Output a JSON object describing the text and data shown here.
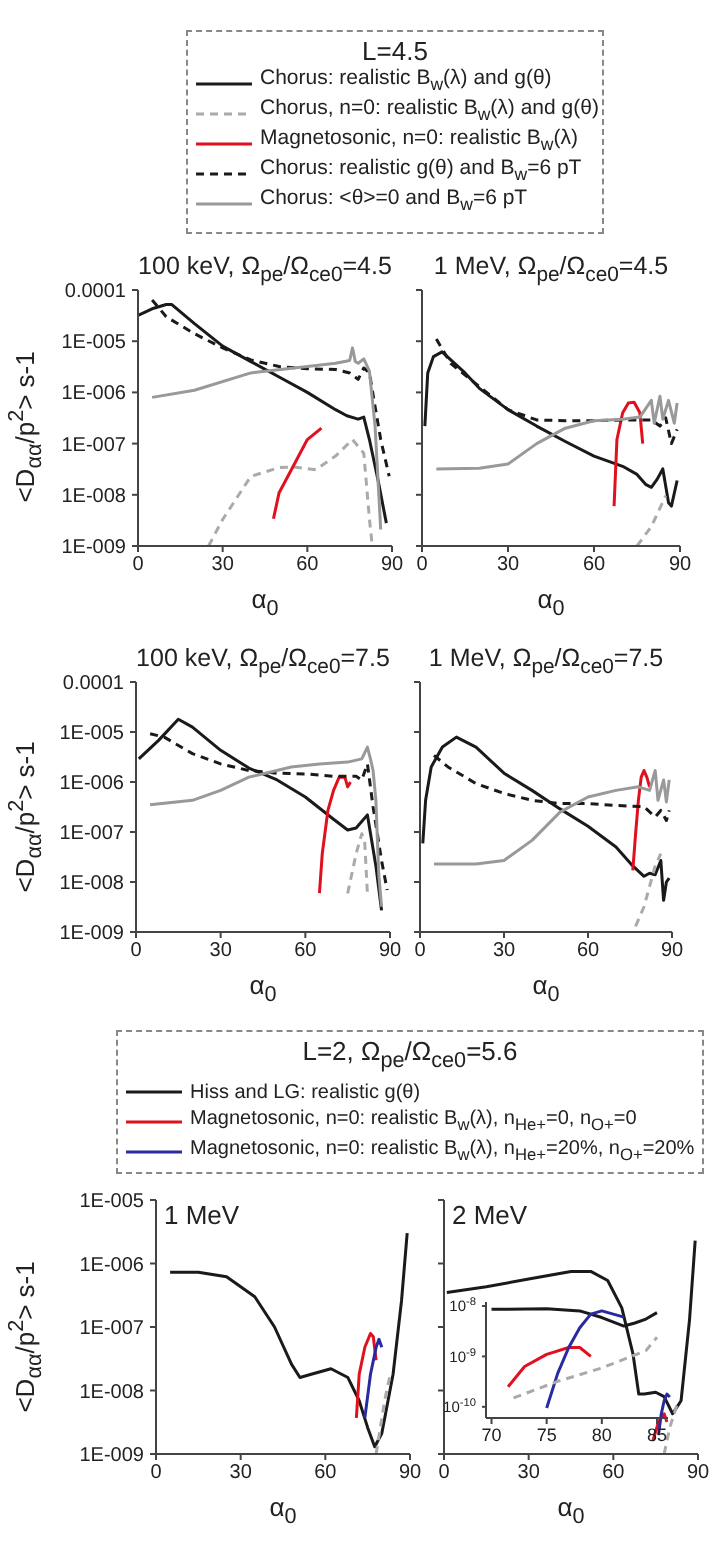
{
  "chart_data": [
    {
      "type": "line",
      "title": "100 keV, Ω$_{pe}$/Ω$_{ce0}$=4.5",
      "xlabel": "α$_{0}$",
      "ylabel": "<D$_{αα}$/p$^{2}$> s-1",
      "legend_title": "L=4.5",
      "legend": "top",
      "log": true,
      "xlim": [
        0,
        90
      ],
      "xticks": [
        0,
        30,
        60,
        90
      ],
      "ylim": [
        1e-09,
        0.0001
      ],
      "yticks": [
        {
          "value": 1e-09,
          "label": "1E-009"
        },
        {
          "value": 1e-08,
          "label": "1E-008"
        },
        {
          "value": 1e-07,
          "label": "1E-007"
        },
        {
          "value": 1e-06,
          "label": "1E-006"
        },
        {
          "value": 1e-05,
          "label": "1E-005"
        },
        {
          "value": 0.0001,
          "label": "0.0001"
        }
      ],
      "series": [
        {
          "name": "Chorus: realistic B$_{w}$(λ) and g(θ)",
          "color": "#1a1a1a",
          "x": [
            0,
            5,
            10,
            12,
            20,
            30,
            40,
            50,
            60,
            70,
            74,
            78,
            80,
            82,
            85,
            88
          ],
          "values": [
            3.2e-05,
            4.3e-05,
            5.2e-05,
            5.2e-05,
            2.2e-05,
            8e-06,
            4e-06,
            2e-06,
            1e-06,
            4.6e-07,
            3.5e-07,
            3e-07,
            3.3e-07,
            1.2e-07,
            2e-08,
            2.8e-09
          ]
        },
        {
          "name": "Chorus, n=0: realistic B$_{w}$(λ) and g(θ)",
          "color": "#aaaaaa",
          "line_style": "dashed",
          "x": [
            25,
            30,
            40,
            50,
            55,
            63,
            70,
            76,
            80,
            82,
            83
          ],
          "values": [
            1e-09,
            3.3e-09,
            2.3e-08,
            3.4e-08,
            3.5e-08,
            3.1e-08,
            5.7e-08,
            1.2e-07,
            6.5e-08,
            3.4e-09,
            1e-09
          ]
        },
        {
          "name": "Magnetosonic, n=0: realistic B$_{w}$(λ)",
          "color": "#e0101e",
          "x": [
            48,
            50,
            55,
            60,
            65
          ],
          "values": [
            3.4e-09,
            1.1e-08,
            3.6e-08,
            1.2e-07,
            2e-07
          ]
        },
        {
          "name": "Chorus: realistic g(θ) and B$_{w}$=6 pT",
          "color": "#1a1a1a",
          "line_style": "dashed",
          "x": [
            5,
            10,
            20,
            30,
            40,
            50,
            60,
            70,
            75,
            78,
            80,
            82,
            84,
            86,
            89
          ],
          "values": [
            6.4e-05,
            3e-05,
            1.4e-05,
            7.4e-06,
            4.3e-06,
            3.2e-06,
            2.9e-06,
            2.8e-06,
            2.4e-06,
            1.8e-06,
            3e-06,
            2.4e-06,
            5.3e-07,
            1.2e-07,
            2.3e-08
          ]
        },
        {
          "name": "Chorus: <θ>=0 and B$_{w}$=6 pT",
          "color": "#999999",
          "x": [
            5,
            20,
            40,
            60,
            70,
            75,
            76,
            77,
            78,
            80,
            82,
            84,
            86
          ],
          "values": [
            8e-07,
            1.1e-06,
            2.4e-06,
            3.2e-06,
            3.7e-06,
            4.2e-06,
            7.4e-06,
            4e-06,
            3.7e-06,
            4.5e-06,
            2.6e-06,
            2.2e-07,
            2.1e-09
          ]
        }
      ]
    },
    {
      "type": "line",
      "title": "1 MeV, Ω$_{pe}$/Ω$_{ce0}$=4.5",
      "xlabel": "α$_{0}$",
      "log": true,
      "tick_labels": "x",
      "xlim": [
        0,
        90
      ],
      "xticks": [
        0,
        30,
        60,
        90
      ],
      "ylim": [
        1e-09,
        0.0001
      ],
      "yticks": [
        {
          "value": 1e-09,
          "label": null
        },
        {
          "value": 1e-08,
          "label": null
        },
        {
          "value": 1e-07,
          "label": null
        },
        {
          "value": 1e-06,
          "label": null
        },
        {
          "value": 1e-05,
          "label": null
        },
        {
          "value": 0.0001,
          "label": null
        }
      ],
      "series": [
        {
          "color": "#1a1a1a",
          "x": [
            1,
            2,
            4,
            7,
            15,
            20,
            30,
            40,
            50,
            60,
            70,
            75,
            78,
            80,
            82,
            84,
            86,
            87,
            89
          ],
          "values": [
            2.2e-07,
            2.4e-06,
            5e-06,
            6.2e-06,
            2.4e-06,
            1.2e-06,
            4.6e-07,
            2.2e-07,
            1.1e-07,
            5.7e-08,
            3.6e-08,
            2.5e-08,
            1.6e-08,
            1.4e-08,
            2e-08,
            3.2e-08,
            7e-09,
            6e-09,
            1.9e-08
          ]
        },
        {
          "color": "#aaaaaa",
          "line_style": "dashed",
          "x": [
            75,
            80,
            85
          ],
          "values": [
            1e-09,
            2.4e-09,
            9.5e-09
          ]
        },
        {
          "color": "#e0101e",
          "x": [
            67,
            68,
            70,
            72,
            74,
            76,
            77
          ],
          "values": [
            6e-09,
            1.2e-07,
            4e-07,
            6.2e-07,
            6.4e-07,
            4e-07,
            1e-07
          ]
        },
        {
          "color": "#1a1a1a",
          "line_style": "dashed",
          "x": [
            5,
            10,
            20,
            30,
            40,
            50,
            60,
            70,
            80,
            83,
            85,
            87,
            89
          ],
          "values": [
            1.1e-05,
            3.7e-06,
            1.3e-06,
            4.6e-07,
            2.9e-07,
            2.8e-07,
            2.8e-07,
            2.9e-07,
            2.9e-07,
            2.2e-07,
            3.2e-07,
            1e-07,
            1.9e-07
          ]
        },
        {
          "color": "#999999",
          "x": [
            5,
            20,
            30,
            40,
            50,
            60,
            70,
            76,
            80,
            81,
            83,
            84,
            86,
            88,
            89
          ],
          "values": [
            3.2e-08,
            3.3e-08,
            4e-08,
            1e-07,
            2e-07,
            2.8e-07,
            3e-07,
            3.3e-07,
            7e-07,
            2.5e-07,
            8.4e-07,
            3e-07,
            7e-07,
            2.5e-07,
            6.2e-07
          ]
        }
      ]
    },
    {
      "type": "line",
      "title": "100 keV, Ω$_{pe}$/Ω$_{ce0}$=7.5",
      "xlabel": "α$_{0}$",
      "ylabel": "<D$_{αα}$/p$^{2}$> s-1",
      "log": true,
      "xlim": [
        0,
        90
      ],
      "xticks": [
        0,
        30,
        60,
        90
      ],
      "ylim": [
        1e-09,
        0.0001
      ],
      "yticks": [
        {
          "value": 1e-09,
          "label": "1E-009"
        },
        {
          "value": 1e-08,
          "label": "1E-008"
        },
        {
          "value": 1e-07,
          "label": "1E-007"
        },
        {
          "value": 1e-06,
          "label": "1E-006"
        },
        {
          "value": 1e-05,
          "label": "1E-005"
        },
        {
          "value": 0.0001,
          "label": "0.0001"
        }
      ],
      "series": [
        {
          "color": "#1a1a1a",
          "x": [
            1,
            8,
            15,
            20,
            30,
            40,
            50,
            60,
            70,
            75,
            78,
            82,
            83,
            85,
            87
          ],
          "values": [
            2.9e-06,
            6.8e-06,
            1.8e-05,
            1.25e-05,
            4.3e-06,
            1.9e-06,
            1.1e-06,
            5e-07,
            1.8e-07,
            1.1e-07,
            1.2e-07,
            2.2e-07,
            1e-07,
            2.1e-08,
            2.7e-09
          ]
        },
        {
          "color": "#aaaaaa",
          "line_style": "dashed",
          "x": [
            75,
            78,
            80,
            81,
            82
          ],
          "values": [
            5.9e-09,
            3.7e-08,
            9.2e-08,
            7e-08,
            5.9e-09
          ]
        },
        {
          "color": "#e0101e",
          "x": [
            65,
            66,
            68,
            70,
            72,
            74,
            75,
            76
          ],
          "values": [
            6e-09,
            3.7e-08,
            2.7e-07,
            6.8e-07,
            1.25e-06,
            1.25e-06,
            8e-07,
            1e-06
          ]
        },
        {
          "color": "#1a1a1a",
          "line_style": "dashed",
          "x": [
            5,
            10,
            20,
            30,
            40,
            50,
            60,
            70,
            78,
            80,
            82,
            84,
            87,
            89
          ],
          "values": [
            9.2e-06,
            7.9e-06,
            3.7e-06,
            2.3e-06,
            1.7e-06,
            1.5e-06,
            1.45e-06,
            1.3e-06,
            1.3e-06,
            1.1e-06,
            2.3e-06,
            3.2e-07,
            2.7e-08,
            6.9e-09
          ]
        },
        {
          "color": "#999999",
          "x": [
            5,
            20,
            30,
            40,
            55,
            65,
            75,
            80,
            82,
            83,
            84,
            85,
            86,
            87
          ],
          "values": [
            3.5e-07,
            4.3e-07,
            6.8e-07,
            1.25e-06,
            2e-06,
            2.3e-06,
            2.5e-06,
            2.9e-06,
            5e-06,
            3e-06,
            1.7e-06,
            4.3e-07,
            1.5e-08,
            3.2e-09
          ]
        }
      ]
    },
    {
      "type": "line",
      "title": "1 MeV, Ω$_{pe}$/Ω$_{ce0}$=7.5",
      "xlabel": "α$_{0}$",
      "log": true,
      "tick_labels": "x",
      "xlim": [
        0,
        90
      ],
      "xticks": [
        0,
        30,
        60,
        90
      ],
      "ylim": [
        1e-09,
        0.0001
      ],
      "yticks": [
        {
          "value": 1e-09,
          "label": null
        },
        {
          "value": 1e-08,
          "label": null
        },
        {
          "value": 1e-07,
          "label": null
        },
        {
          "value": 1e-06,
          "label": null
        },
        {
          "value": 1e-05,
          "label": null
        },
        {
          "value": 0.0001,
          "label": null
        }
      ],
      "series": [
        {
          "color": "#1a1a1a",
          "x": [
            1,
            2,
            4,
            8,
            13,
            20,
            30,
            40,
            50,
            60,
            70,
            76,
            80,
            82,
            84,
            86,
            87,
            88,
            89
          ],
          "values": [
            5.9e-08,
            4.3e-07,
            2e-06,
            5e-06,
            7.9e-06,
            5e-06,
            1.5e-06,
            6.8e-07,
            2.9e-07,
            1.3e-07,
            5e-08,
            2.1e-08,
            1.3e-08,
            1.5e-08,
            1.4e-08,
            2.7e-08,
            4.3e-09,
            1e-08,
            1.2e-08
          ]
        },
        {
          "color": "#aaaaaa",
          "line_style": "dashed",
          "x": [
            77,
            80,
            84,
            86
          ],
          "values": [
            1.3e-09,
            3.2e-09,
            2.1e-08,
            3.7e-08
          ]
        },
        {
          "color": "#e0101e",
          "x": [
            76,
            77,
            78,
            79,
            80,
            81,
            82
          ],
          "values": [
            1.7e-08,
            9.2e-08,
            4.3e-07,
            1.25e-06,
            1.7e-06,
            1.25e-06,
            8e-07
          ]
        },
        {
          "color": "#1a1a1a",
          "line_style": "dashed",
          "x": [
            5,
            10,
            20,
            30,
            40,
            50,
            60,
            70,
            80,
            84,
            86,
            88,
            89
          ],
          "values": [
            3.4e-06,
            2e-06,
            9.3e-07,
            5.9e-07,
            4.3e-07,
            3.7e-07,
            3.7e-07,
            3.4e-07,
            3.2e-07,
            2e-07,
            2.7e-07,
            1.7e-07,
            2.7e-07
          ]
        },
        {
          "color": "#999999",
          "x": [
            5,
            20,
            30,
            40,
            50,
            60,
            70,
            78,
            82,
            84,
            85,
            87,
            88,
            89
          ],
          "values": [
            2.3e-08,
            2.3e-08,
            2.7e-08,
            6.8e-08,
            2.5e-07,
            5e-07,
            6.8e-07,
            8e-07,
            6.8e-07,
            1.7e-06,
            4.3e-07,
            1.1e-06,
            4e-07,
            1.1e-06
          ]
        }
      ]
    },
    {
      "type": "line",
      "title": "1 MeV",
      "xlabel": "α$_{0}$",
      "ylabel": "<D$_{αα}$/p$^{2}$> s-1",
      "legend_title": "L=2, Ω$_{pe}$/Ω$_{ce0}$=5.6",
      "legend": "top",
      "log": true,
      "xlim": [
        0,
        90
      ],
      "xticks": [
        0,
        30,
        60,
        90
      ],
      "ylim": [
        1e-09,
        1e-05
      ],
      "yticks": [
        {
          "value": 1e-09,
          "label": "1E-009"
        },
        {
          "value": 1e-08,
          "label": "1E-008"
        },
        {
          "value": 1e-07,
          "label": "1E-007"
        },
        {
          "value": 1e-06,
          "label": "1E-006"
        },
        {
          "value": 1e-05,
          "label": "1E-005"
        }
      ],
      "series": [
        {
          "name": "Hiss and LG: realistic g(θ)",
          "color": "#1a1a1a",
          "x": [
            5,
            15,
            25,
            35,
            42,
            48,
            51,
            55,
            62,
            68,
            72,
            75,
            77.5,
            80,
            84,
            87,
            89
          ],
          "values": [
            7.3e-07,
            7.3e-07,
            6.2e-07,
            3e-07,
            1e-07,
            2.6e-08,
            1.6e-08,
            1.8e-08,
            2.2e-08,
            1.6e-08,
            6.9e-09,
            2.6e-09,
            1.3e-09,
            2.1e-09,
            1.8e-08,
            2.6e-07,
            3e-06
          ]
        },
        {
          "name": "Magnetosonic, n=0: realistic B$_{w}$(λ), n$_{He+}$=0, n$_{O+}$=0",
          "color": "#e0101e",
          "x": [
            71,
            72,
            74,
            76,
            77,
            78
          ],
          "values": [
            3.7e-09,
            1.8e-08,
            4.8e-08,
            7.9e-08,
            7e-08,
            3e-08
          ]
        },
        {
          "name": "Magnetosonic, n=0: realistic B$_{w}$(λ), n$_{He+}$=20%, n$_{O+}$=20%",
          "color": "#2a2aa0",
          "x": [
            74,
            76,
            78,
            79,
            80
          ],
          "values": [
            3.7e-09,
            1.8e-08,
            4.8e-08,
            6.4e-08,
            4.8e-08
          ]
        },
        {
          "color": "#aaaaaa",
          "line_style": "dashed",
          "x": [
            78,
            81,
            83
          ],
          "values": [
            1e-09,
            6.9e-09,
            1.8e-08
          ]
        }
      ]
    },
    {
      "type": "line",
      "title": "2 MeV",
      "xlabel": "α$_{0}$",
      "log": true,
      "tick_labels": "x",
      "xlim": [
        0,
        90
      ],
      "xticks": [
        0,
        30,
        60,
        90
      ],
      "ylim": [
        1e-09,
        1e-05
      ],
      "yticks": [
        {
          "value": 1e-09,
          "label": null
        },
        {
          "value": 1e-08,
          "label": null
        },
        {
          "value": 1e-07,
          "label": null
        },
        {
          "value": 1e-06,
          "label": null
        },
        {
          "value": 1e-05,
          "label": null
        }
      ],
      "series": [
        {
          "color": "#1a1a1a",
          "x": [
            1,
            15,
            30,
            45,
            52,
            58,
            63,
            67,
            69,
            71,
            75,
            78,
            81,
            84,
            87,
            89
          ],
          "values": [
            3.5e-07,
            4.3e-07,
            5.7e-07,
            7.5e-07,
            7.5e-07,
            5.4e-07,
            2e-07,
            3.7e-08,
            8.8e-09,
            8.8e-09,
            9.4e-09,
            8e-09,
            4.3e-09,
            6.9e-09,
            1.3e-07,
            2.3e-06
          ]
        },
        {
          "color": "#e0101e",
          "x": [
            74,
            76,
            78,
            79
          ],
          "values": [
            1.6e-09,
            3.2e-09,
            4.3e-09,
            3.2e-09
          ]
        },
        {
          "color": "#2a2aa0",
          "x": [
            76,
            77,
            78,
            79,
            80
          ],
          "values": [
            2e-09,
            4.3e-09,
            6.9e-09,
            8.8e-09,
            7.9e-09
          ]
        },
        {
          "color": "#aaaaaa",
          "line_style": "dashed",
          "x": [
            78,
            80,
            83
          ],
          "values": [
            1e-09,
            2.6e-09,
            6.9e-09
          ]
        }
      ]
    },
    {
      "type": "line",
      "log": true,
      "xlim": [
        69.5,
        86
      ],
      "xticks": [
        70,
        75,
        80,
        85
      ],
      "ylim": [
        6e-11,
        1.2e-08
      ],
      "yticks": [
        {
          "value": 1e-10,
          "label": "10$^{-10}$"
        },
        {
          "value": 1e-09,
          "label": "10$^{-9}$"
        },
        {
          "value": 1e-08,
          "label": "10$^{-8}$"
        }
      ],
      "series": [
        {
          "color": "#1a1a1a",
          "x": [
            70,
            75,
            78,
            80,
            82,
            83,
            84,
            85
          ],
          "values": [
            8.6e-09,
            8.8e-09,
            8e-09,
            5.9e-09,
            4e-09,
            4.6e-09,
            5.5e-09,
            7.4e-09
          ]
        },
        {
          "color": "#e0101e",
          "x": [
            71.5,
            73,
            75,
            77,
            78,
            79
          ],
          "values": [
            2.5e-10,
            6.3e-10,
            1.1e-09,
            1.5e-09,
            1.5e-09,
            1e-09
          ]
        },
        {
          "color": "#2a2aa0",
          "x": [
            75,
            76,
            77,
            78,
            79,
            80,
            82
          ],
          "values": [
            9.5e-11,
            4.6e-10,
            1.5e-09,
            3.7e-09,
            6.9e-09,
            8e-09,
            6e-09
          ]
        },
        {
          "color": "#aaaaaa",
          "line_style": "dashed",
          "x": [
            72,
            76,
            80,
            84,
            85
          ],
          "values": [
            1.5e-10,
            3.2e-10,
            5.9e-10,
            1.3e-09,
            2.4e-09
          ]
        }
      ]
    }
  ]
}
